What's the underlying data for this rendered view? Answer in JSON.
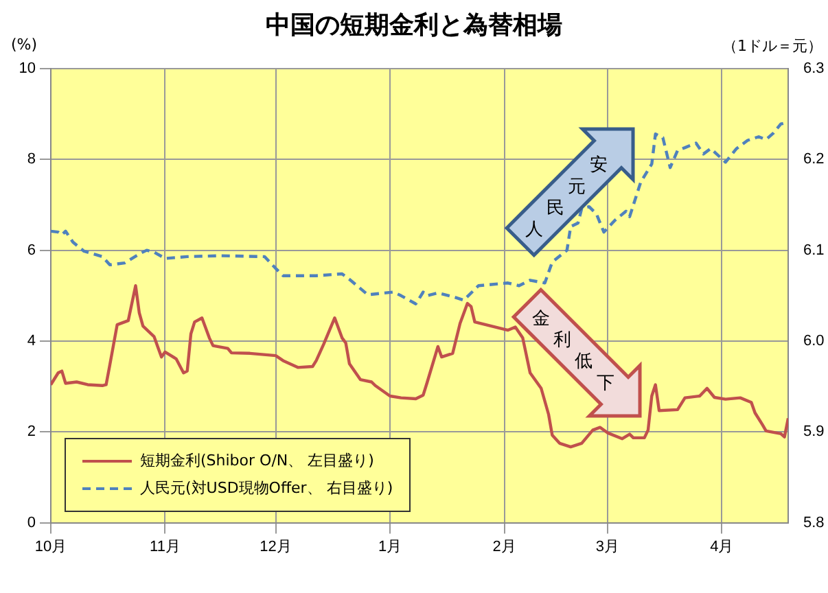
{
  "chart_data": {
    "type": "line",
    "title": "中国の短期金利と為替相場",
    "ylabel": "(%)",
    "y2label": "（1ドル＝元）",
    "annotations": [
      "人民元安",
      "金利低下"
    ],
    "xlim": [
      "2012-10-01",
      "2013-04-19"
    ],
    "xticks": [
      {
        "value": "2012-10-01",
        "label": "10月"
      },
      {
        "value": "2012-11-01",
        "label": "11月"
      },
      {
        "value": "2012-12-01",
        "label": "12月"
      },
      {
        "value": "2013-01-01",
        "label": "1月"
      },
      {
        "value": "2013-02-01",
        "label": "2月"
      },
      {
        "value": "2013-03-01",
        "label": "3月"
      },
      {
        "value": "2013-04-01",
        "label": "4月"
      }
    ],
    "ylim": [
      0,
      10
    ],
    "yticks": [
      0,
      2,
      4,
      6,
      8,
      10
    ],
    "y2lim": [
      5.8,
      6.3
    ],
    "y2ticks": [
      5.8,
      5.9,
      {
        "value": 6,
        "label": "6.0"
      },
      6.1,
      6.2,
      6.3
    ],
    "grid": true,
    "legend": "bottom left",
    "marker": "none",
    "series": [
      {
        "name": "短期金利(Shibor O/N、 左目盛り)",
        "color": "#c0504d",
        "line_style": "solid",
        "x": [
          "2012-10-01",
          "2012-10-03",
          "2012-10-04",
          "2012-10-05",
          "2012-10-08",
          "2012-10-11",
          "2012-10-15",
          "2012-10-16",
          "2012-10-17",
          "2012-10-19",
          "2012-10-22",
          "2012-10-24",
          "2012-10-25",
          "2012-10-26",
          "2012-10-29",
          "2012-10-31",
          "2012-11-01",
          "2012-11-04",
          "2012-11-06",
          "2012-11-07",
          "2012-11-08",
          "2012-11-09",
          "2012-11-11",
          "2012-11-13",
          "2012-11-14",
          "2012-11-18",
          "2012-11-19",
          "2012-11-24",
          "2012-12-01",
          "2012-12-03",
          "2012-12-07",
          "2012-12-11",
          "2012-12-12",
          "2012-12-14",
          "2012-12-17",
          "2012-12-19",
          "2012-12-20",
          "2012-12-21",
          "2012-12-24",
          "2012-12-27",
          "2012-12-28",
          "2013-01-01",
          "2013-01-04",
          "2013-01-08",
          "2013-01-10",
          "2013-01-11",
          "2013-01-14",
          "2013-01-15",
          "2013-01-18",
          "2013-01-20",
          "2013-01-22",
          "2013-01-23",
          "2013-01-24",
          "2013-02-02",
          "2013-02-04",
          "2013-02-06",
          "2013-02-08",
          "2013-02-11",
          "2013-02-13",
          "2013-02-14",
          "2013-02-16",
          "2013-02-19",
          "2013-02-22",
          "2013-02-25",
          "2013-02-27",
          "2013-03-01",
          "2013-03-05",
          "2013-03-07",
          "2013-03-08",
          "2013-03-11",
          "2013-03-12",
          "2013-03-13",
          "2013-03-14",
          "2013-03-15",
          "2013-03-20",
          "2013-03-22",
          "2013-03-26",
          "2013-03-28",
          "2013-03-30",
          "2013-04-02",
          "2013-04-06",
          "2013-04-09",
          "2013-04-10",
          "2013-04-12",
          "2013-04-13",
          "2013-04-17",
          "2013-04-18",
          "2013-04-19"
        ],
        "values": [
          3.04,
          3.3,
          3.34,
          3.07,
          3.1,
          3.04,
          3.02,
          3.04,
          3.47,
          4.36,
          4.45,
          5.22,
          4.62,
          4.33,
          4.1,
          3.65,
          3.76,
          3.61,
          3.3,
          3.34,
          4.16,
          4.42,
          4.51,
          4.07,
          3.9,
          3.84,
          3.74,
          3.73,
          3.68,
          3.57,
          3.42,
          3.44,
          3.57,
          3.93,
          4.51,
          4.07,
          3.96,
          3.5,
          3.15,
          3.1,
          3.02,
          2.79,
          2.75,
          2.73,
          2.81,
          3.07,
          3.88,
          3.65,
          3.73,
          4.39,
          4.83,
          4.76,
          4.42,
          4.24,
          4.31,
          4.07,
          3.3,
          2.96,
          2.39,
          1.93,
          1.75,
          1.67,
          1.75,
          2.04,
          2.1,
          1.98,
          1.85,
          1.95,
          1.87,
          1.87,
          2.04,
          2.79,
          3.04,
          2.47,
          2.49,
          2.75,
          2.79,
          2.96,
          2.76,
          2.72,
          2.75,
          2.65,
          2.42,
          2.16,
          2.02,
          1.96,
          1.89,
          2.3
        ]
      },
      {
        "name": "人民元(対USD現物Offer、 右目盛り)",
        "color": "#4f81bd",
        "line_style": "dashed",
        "axis": "y2",
        "x": [
          "2012-10-01",
          "2012-10-03",
          "2012-10-04",
          "2012-10-05",
          "2012-10-07",
          "2012-10-10",
          "2012-10-15",
          "2012-10-17",
          "2012-10-21",
          "2012-10-25",
          "2012-10-27",
          "2012-10-29",
          "2012-11-01",
          "2012-11-07",
          "2012-11-16",
          "2012-11-28",
          "2012-12-01",
          "2012-12-03",
          "2012-12-12",
          "2012-12-19",
          "2012-12-21",
          "2012-12-26",
          "2013-01-02",
          "2013-01-04",
          "2013-01-08",
          "2013-01-10",
          "2013-01-11",
          "2013-01-14",
          "2013-01-18",
          "2013-01-21",
          "2013-01-25",
          "2013-02-02",
          "2013-02-05",
          "2013-02-08",
          "2013-02-12",
          "2013-02-14",
          "2013-02-18",
          "2013-02-19",
          "2013-02-21",
          "2013-02-22",
          "2013-02-24",
          "2013-02-26",
          "2013-02-28",
          "2013-03-03",
          "2013-03-06",
          "2013-03-07",
          "2013-03-10",
          "2013-03-13",
          "2013-03-14",
          "2013-03-16",
          "2013-03-18",
          "2013-03-20",
          "2013-03-22",
          "2013-03-25",
          "2013-03-27",
          "2013-03-29",
          "2013-04-02",
          "2013-04-05",
          "2013-04-08",
          "2013-04-11",
          "2013-04-13",
          "2013-04-15",
          "2013-04-17",
          "2013-04-18"
        ],
        "values": [
          6.121,
          6.12,
          6.117,
          6.121,
          6.109,
          6.099,
          6.093,
          6.084,
          6.086,
          6.096,
          6.1,
          6.098,
          6.091,
          6.093,
          6.094,
          6.093,
          6.08,
          6.072,
          6.072,
          6.074,
          6.068,
          6.051,
          6.054,
          6.05,
          6.041,
          6.054,
          6.05,
          6.053,
          6.049,
          6.045,
          6.061,
          6.064,
          6.061,
          6.067,
          6.064,
          6.087,
          6.1,
          6.126,
          6.13,
          6.146,
          6.148,
          6.14,
          6.12,
          6.133,
          6.143,
          6.137,
          6.175,
          6.195,
          6.228,
          6.224,
          6.191,
          6.21,
          6.213,
          6.218,
          6.206,
          6.212,
          6.197,
          6.212,
          6.221,
          6.225,
          6.222,
          6.229,
          6.239,
          6.24
        ]
      }
    ]
  }
}
